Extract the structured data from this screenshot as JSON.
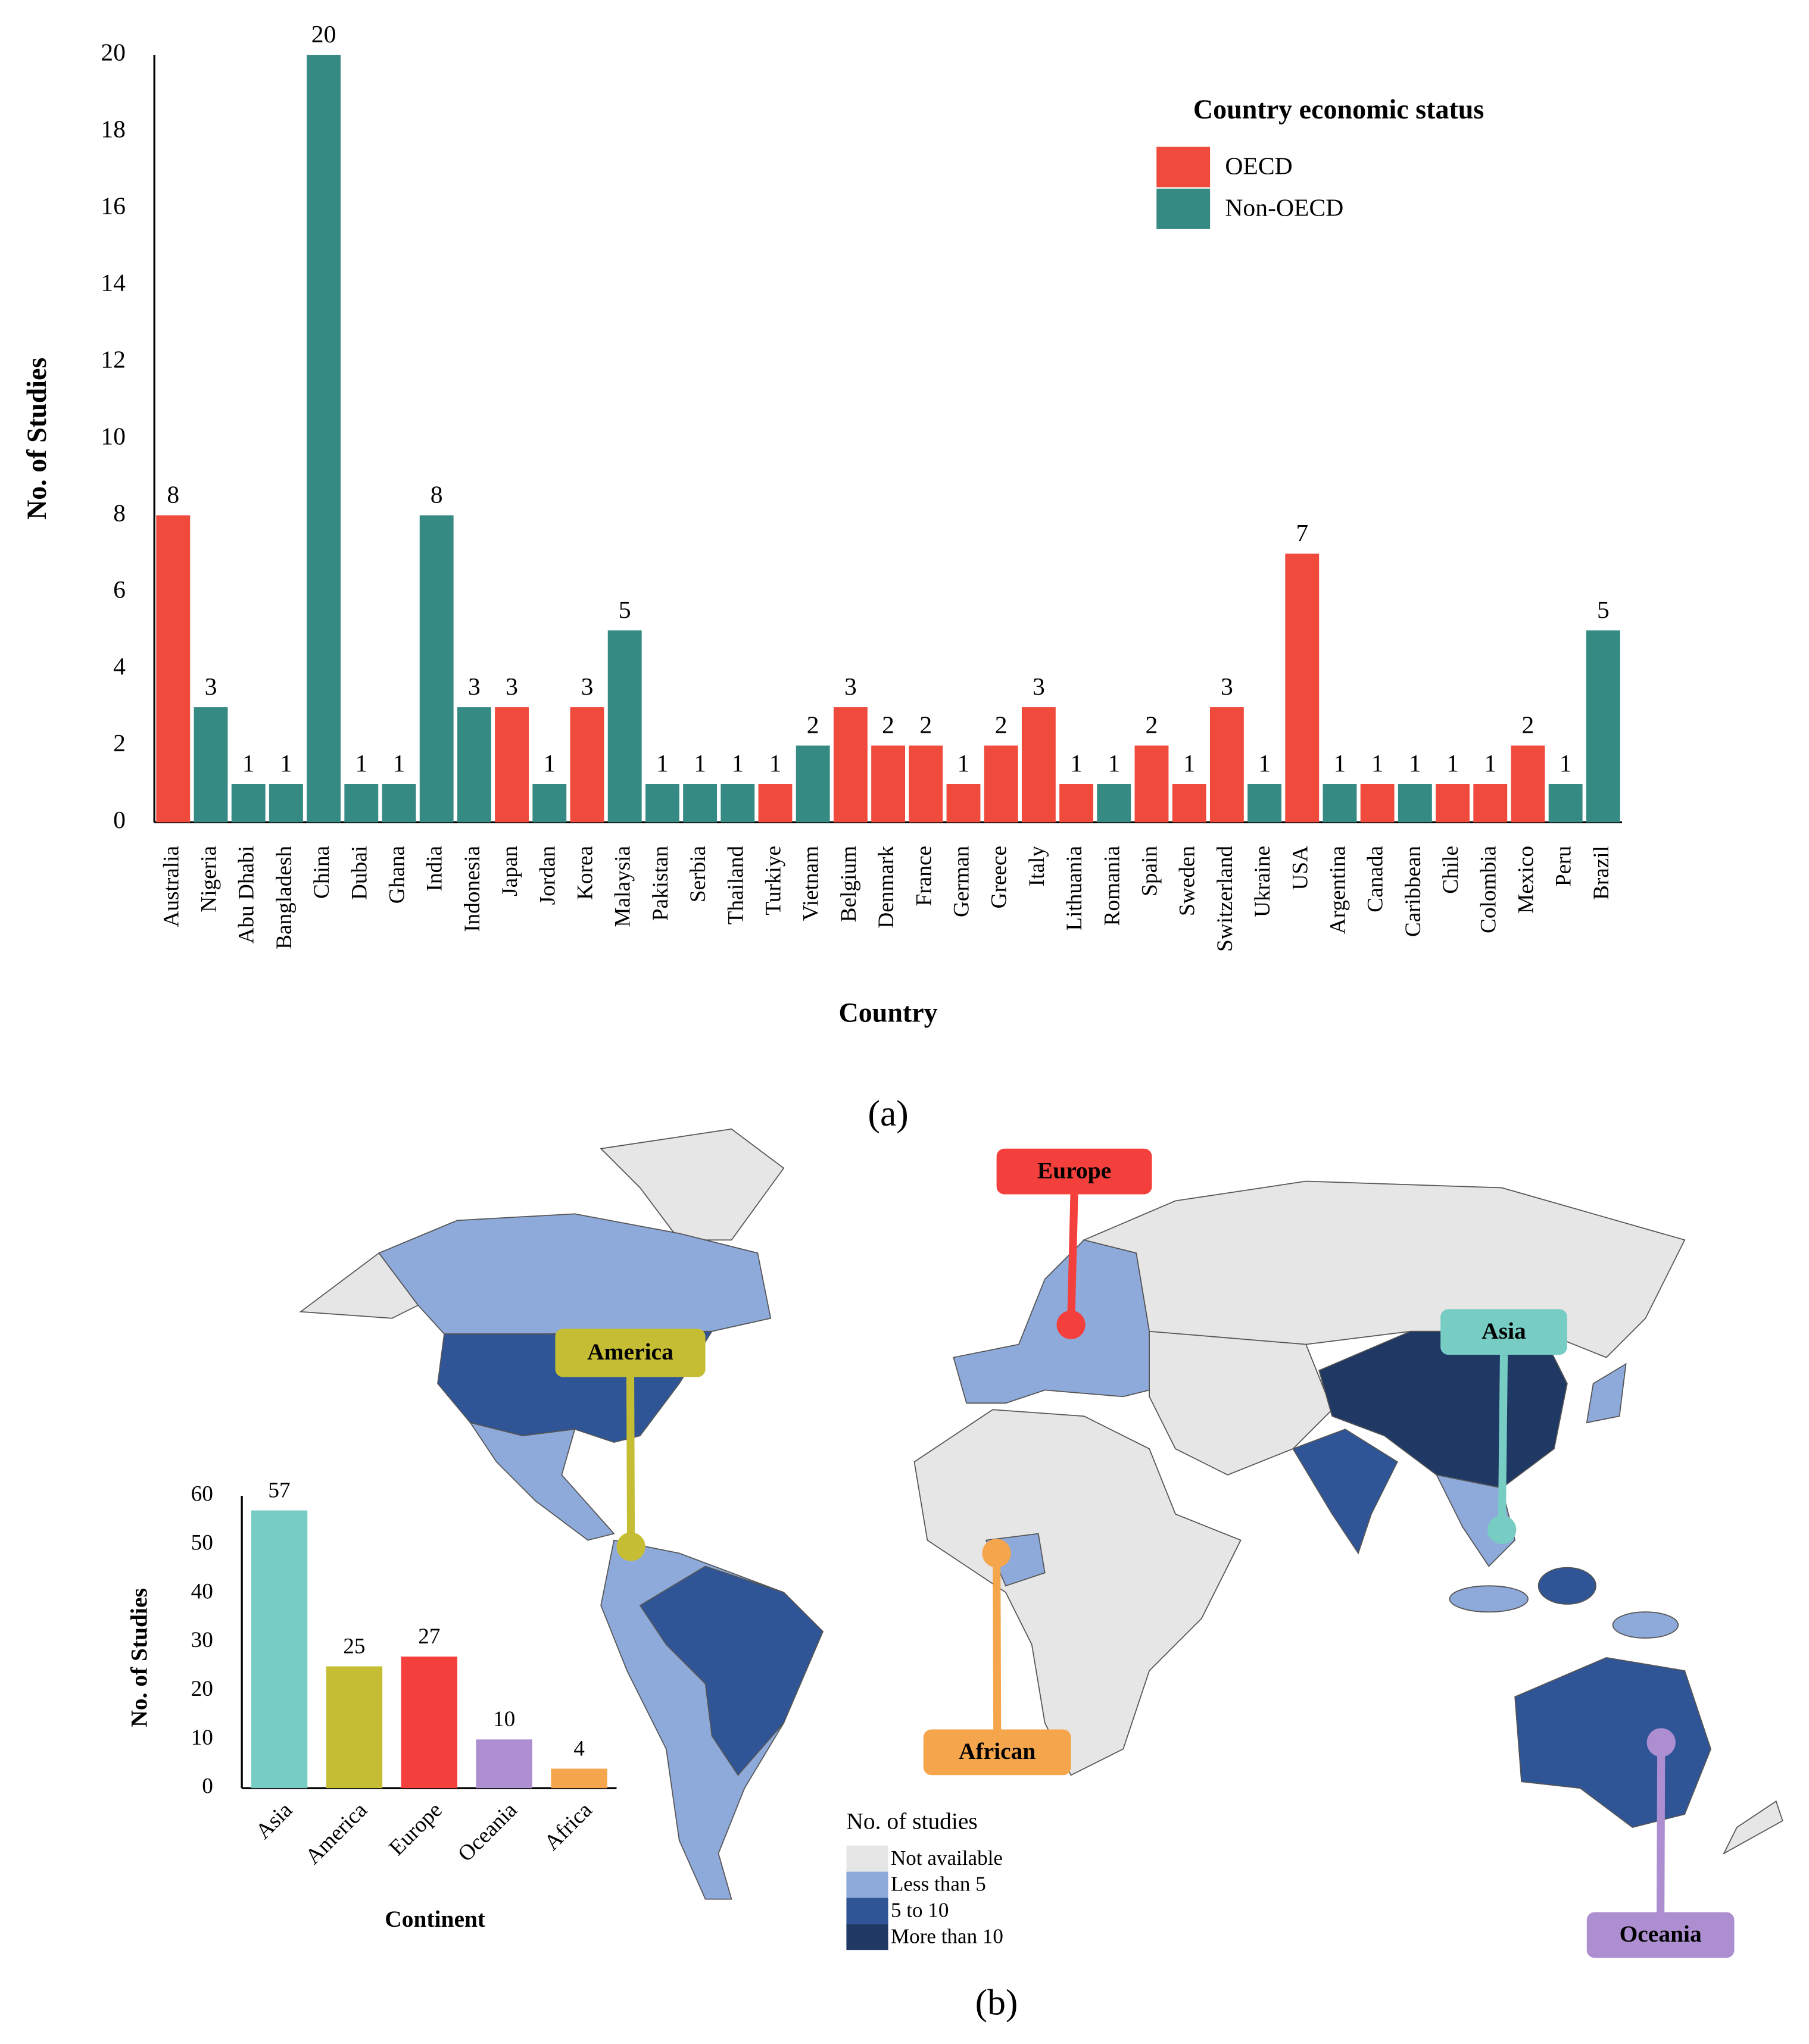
{
  "chart_data": [
    {
      "type": "bar",
      "x_label": "Country",
      "y_label": "No. of Studies",
      "legend_title": "Country economic status",
      "categories": [
        "Australia",
        "Nigeria",
        "Abu Dhabi",
        "Bangladesh",
        "China",
        "Dubai",
        "Ghana",
        "India",
        "Indonesia",
        "Japan",
        "Jordan",
        "Korea",
        "Malaysia",
        "Pakistan",
        "Serbia",
        "Thailand",
        "Turkiye",
        "Vietnam",
        "Belgium",
        "Denmark",
        "France",
        "German",
        "Greece",
        "Italy",
        "Lithuania",
        "Romania",
        "Spain",
        "Sweden",
        "Switzerland",
        "Ukraine",
        "USA",
        "Argentina",
        "Canada",
        "Caribbean",
        "Chile",
        "Colombia",
        "Mexico",
        "Peru",
        "Brazil"
      ],
      "series": [
        {
          "name": "OECD",
          "color": "#ef4a3c",
          "values": [
            8,
            null,
            null,
            null,
            null,
            null,
            null,
            null,
            null,
            3,
            null,
            3,
            null,
            null,
            null,
            null,
            1,
            null,
            3,
            2,
            2,
            1,
            2,
            3,
            1,
            null,
            2,
            1,
            3,
            null,
            7,
            null,
            1,
            null,
            1,
            1,
            2,
            null,
            null
          ]
        },
        {
          "name": "Non-OECD",
          "color": "#358a84",
          "values": [
            null,
            3,
            1,
            1,
            20,
            1,
            1,
            8,
            3,
            null,
            1,
            null,
            5,
            1,
            1,
            1,
            null,
            2,
            null,
            null,
            null,
            null,
            null,
            null,
            null,
            1,
            null,
            null,
            null,
            1,
            null,
            1,
            null,
            1,
            null,
            null,
            null,
            1,
            5
          ]
        }
      ],
      "ylim": [
        0,
        20
      ],
      "yticks": [
        0,
        2,
        4,
        6,
        8,
        10,
        12,
        14,
        16,
        18,
        20
      ]
    },
    {
      "type": "bar",
      "x_label": "Continent",
      "y_label": "No. of Studies",
      "categories": [
        "Asia",
        "America",
        "Europe",
        "Oceania",
        "Africa"
      ],
      "values": [
        57,
        25,
        27,
        10,
        4
      ],
      "colors": [
        "#77ccc4",
        "#c5bd34",
        "#f4403c",
        "#ad8fd1",
        "#f5a64c"
      ],
      "ylim": [
        0,
        60
      ],
      "yticks": [
        0,
        10,
        20,
        30,
        40,
        50,
        60
      ]
    }
  ],
  "captions": [
    "(a)",
    "(b)"
  ],
  "map": {
    "legend_title": "No. of  studies",
    "legend": [
      {
        "label": "Not available",
        "color": "#e6e6e6"
      },
      {
        "label": "Less than 5",
        "color": "#8eaadb"
      },
      {
        "label": "5 to 10",
        "color": "#2f5597"
      },
      {
        "label": "More than 10",
        "color": "#1f3864"
      }
    ],
    "callouts": [
      {
        "label": "Europe",
        "color": "#f4403c"
      },
      {
        "label": "America",
        "color": "#c5bd34"
      },
      {
        "label": "Asia",
        "color": "#77ccc4"
      },
      {
        "label": "African",
        "color": "#f5a64c"
      },
      {
        "label": "Oceania",
        "color": "#ad8fd1"
      }
    ]
  }
}
